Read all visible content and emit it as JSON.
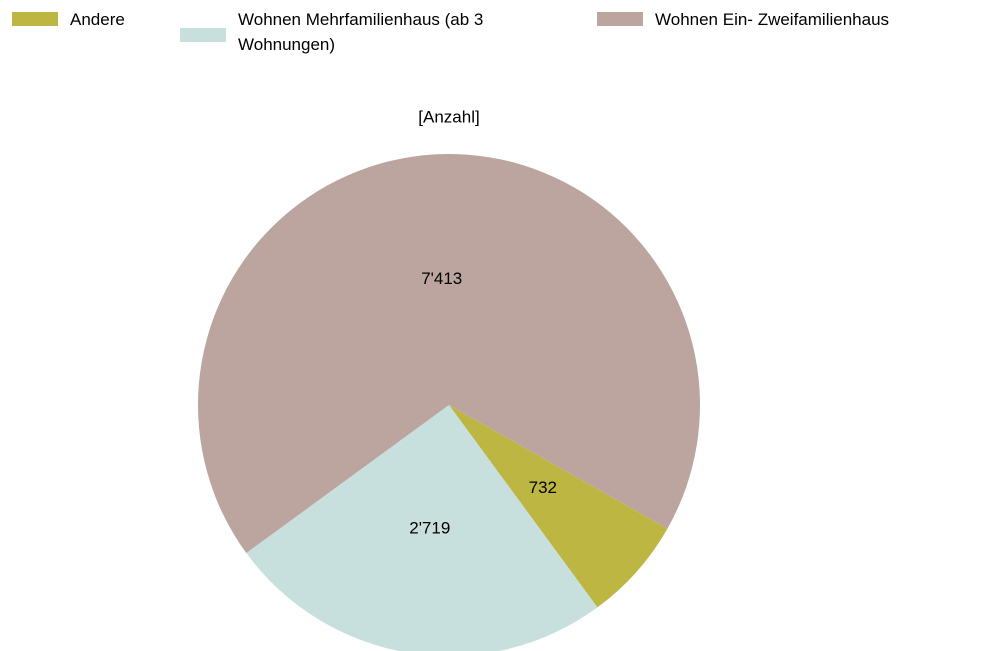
{
  "chart_data": {
    "type": "pie",
    "title": "[Anzahl]",
    "categories": [
      "Andere",
      "Wohnen Mehrfamilienhaus (ab 3 Wohnungen)",
      "Wohnen Ein- Zweifamilienhaus"
    ],
    "values": [
      732,
      2719,
      7413
    ],
    "value_labels": [
      "732",
      "2'719",
      "7'413"
    ],
    "colors": [
      "#bdb642",
      "#c7e0dd",
      "#bba59e"
    ],
    "legend": "top"
  }
}
